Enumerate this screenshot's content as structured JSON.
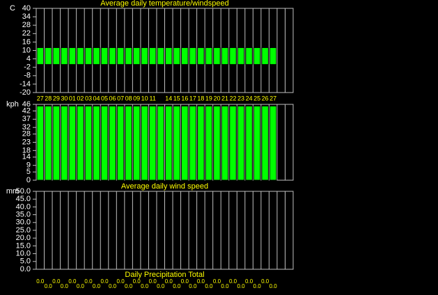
{
  "chart_data": [
    {
      "type": "bar",
      "title": "Average daily temperature/windspeed",
      "y_label": "C",
      "categories": [
        "27",
        "28",
        "29",
        "30",
        "01",
        "02",
        "03",
        "04",
        "05",
        "06",
        "07",
        "08",
        "09",
        "10",
        "11",
        null,
        "14",
        "15",
        "16",
        "17",
        "18",
        "19",
        "20",
        "21",
        "22",
        "23",
        "24",
        "25",
        "26",
        "27"
      ],
      "values": [
        12,
        12,
        12,
        12,
        12,
        12,
        12,
        12,
        12,
        12,
        12,
        12,
        12,
        12,
        12,
        12,
        12,
        12,
        12,
        12,
        12,
        12,
        12,
        12,
        12,
        12,
        12,
        12,
        12,
        12
      ],
      "color": "#00ff00",
      "ylim": [
        -20,
        40
      ],
      "yticks": [
        40,
        34,
        28,
        22,
        16,
        10,
        4,
        -2,
        -8,
        -14,
        -20
      ],
      "grid": true
    },
    {
      "type": "bar",
      "title": "Average daily wind speed",
      "y_label": "kph",
      "values": [
        45,
        45,
        45,
        45,
        45,
        45,
        45,
        45,
        45,
        45,
        45,
        45,
        45,
        45,
        45,
        45,
        45,
        45,
        45,
        45,
        45,
        45,
        45,
        45,
        45,
        45,
        45,
        45,
        45,
        45
      ],
      "color": "#00ff00",
      "ylim": [
        0,
        46
      ],
      "yticks": [
        46,
        42,
        37,
        32,
        28,
        23,
        18,
        14,
        9,
        5,
        0
      ],
      "grid": true
    },
    {
      "type": "bar",
      "title": "Daily Precipitation Total",
      "y_label": "mm",
      "values": [
        0,
        0,
        0,
        0,
        0,
        0,
        0,
        0,
        0,
        0,
        0,
        0,
        0,
        0,
        0,
        0,
        0,
        0,
        0,
        0,
        0,
        0,
        0,
        0,
        0,
        0,
        0,
        0,
        0,
        0
      ],
      "value_labels": [
        "0.0",
        "0.0",
        "0.0",
        "0.0",
        "0.0",
        "0.0",
        "0.0",
        "0.0",
        "0.0",
        "0.0",
        "0.0",
        "0.0",
        "0.0",
        "0.0",
        "0.0",
        "0.0",
        "0.0",
        "0.0",
        "0.0",
        "0.0",
        "0.0",
        "0.0",
        "0.0",
        "0.0",
        "0.0",
        "0.0",
        "0.0",
        "0.0",
        "0.0",
        "0.0"
      ],
      "color": "#00ff00",
      "ylim": [
        0,
        50
      ],
      "yticks": [
        {
          "value": 50,
          "label": "50.0"
        },
        {
          "value": 45,
          "label": "45.0"
        },
        {
          "value": 40,
          "label": "40.0"
        },
        {
          "value": 35,
          "label": "35.0"
        },
        {
          "value": 30,
          "label": "30.0"
        },
        {
          "value": 25,
          "label": "25.0"
        },
        {
          "value": 20,
          "label": "20.0"
        },
        {
          "value": 15,
          "label": "15.0"
        },
        {
          "value": 10,
          "label": "10.0"
        },
        {
          "value": 5,
          "label": "5.0"
        },
        {
          "value": 0,
          "label": "0.0"
        }
      ],
      "grid": true
    }
  ]
}
